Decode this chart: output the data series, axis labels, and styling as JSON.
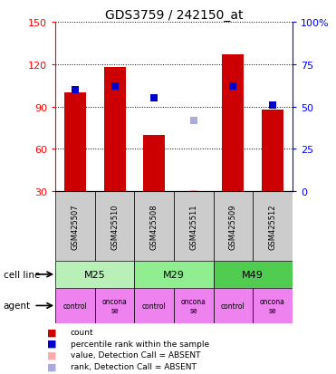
{
  "title": "GDS3759 / 242150_at",
  "samples": [
    "GSM425507",
    "GSM425510",
    "GSM425508",
    "GSM425511",
    "GSM425509",
    "GSM425512"
  ],
  "bar_values": [
    100,
    118,
    70,
    null,
    127,
    88
  ],
  "absent_bar_value": 31,
  "absent_bar_idx": 3,
  "blue_sq_vals_right": [
    60,
    62,
    55,
    null,
    62,
    51
  ],
  "absent_blue_sq_val": 42,
  "absent_blue_sq_idx": 3,
  "ylim_left": [
    30,
    150
  ],
  "ylim_right": [
    0,
    100
  ],
  "yticks_left": [
    30,
    60,
    90,
    120,
    150
  ],
  "yticks_right": [
    0,
    25,
    50,
    75,
    100
  ],
  "ytick_labels_right": [
    "0",
    "25",
    "50",
    "75",
    "100%"
  ],
  "bar_color": "#cc0000",
  "bar_absent_color": "#ffaaaa",
  "blue_color": "#0000cc",
  "blue_absent_color": "#aaaadd",
  "cell_line_colors": [
    "#b8f0b8",
    "#90ee90",
    "#50cc50"
  ],
  "cell_lines": [
    {
      "label": "M25",
      "start": 0,
      "end": 2
    },
    {
      "label": "M29",
      "start": 2,
      "end": 4
    },
    {
      "label": "M49",
      "start": 4,
      "end": 6
    }
  ],
  "agent_color": "#ee82ee",
  "agents": [
    {
      "label": "control",
      "start": 0,
      "end": 1
    },
    {
      "label": "oncona\nse",
      "start": 1,
      "end": 2
    },
    {
      "label": "control",
      "start": 2,
      "end": 3
    },
    {
      "label": "oncona\nse",
      "start": 3,
      "end": 4
    },
    {
      "label": "control",
      "start": 4,
      "end": 5
    },
    {
      "label": "oncona\nse",
      "start": 5,
      "end": 6
    }
  ],
  "legend_items": [
    {
      "color": "#cc0000",
      "label": "count"
    },
    {
      "color": "#0000cc",
      "label": "percentile rank within the sample"
    },
    {
      "color": "#ffaaaa",
      "label": "value, Detection Call = ABSENT"
    },
    {
      "color": "#aaaadd",
      "label": "rank, Detection Call = ABSENT"
    }
  ],
  "sample_bg_color": "#cccccc",
  "left_label_cell": "cell line",
  "left_label_agent": "agent"
}
